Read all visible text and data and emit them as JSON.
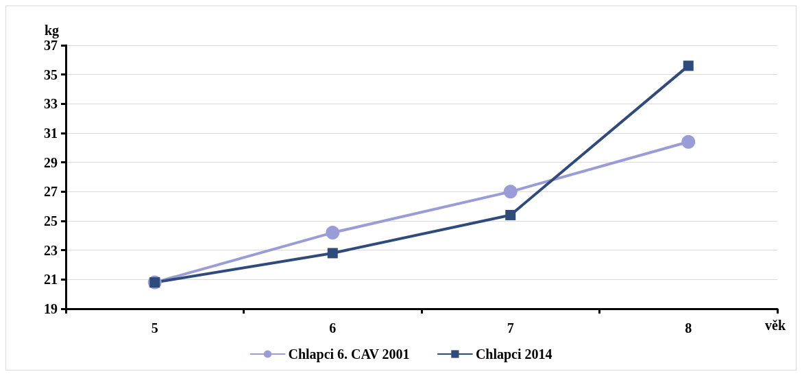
{
  "chart_data": {
    "type": "line",
    "xlabel": "věk",
    "ylabel": "kg",
    "categories": [
      "5",
      "6",
      "7",
      "8"
    ],
    "series": [
      {
        "name": "Chlapci 6. CAV 2001",
        "color": "#9a9cd8",
        "marker": "circle",
        "values": [
          20.8,
          24.2,
          27.0,
          30.4
        ]
      },
      {
        "name": "Chlapci 2014",
        "color": "#2f4b7c",
        "marker": "square",
        "values": [
          20.8,
          22.8,
          25.4,
          35.6
        ]
      }
    ],
    "ylim": [
      19,
      37
    ],
    "yticks": [
      19,
      21,
      23,
      25,
      27,
      29,
      31,
      33,
      35,
      37
    ],
    "grid": "y",
    "legend": "bottom",
    "line_style": "solid"
  }
}
